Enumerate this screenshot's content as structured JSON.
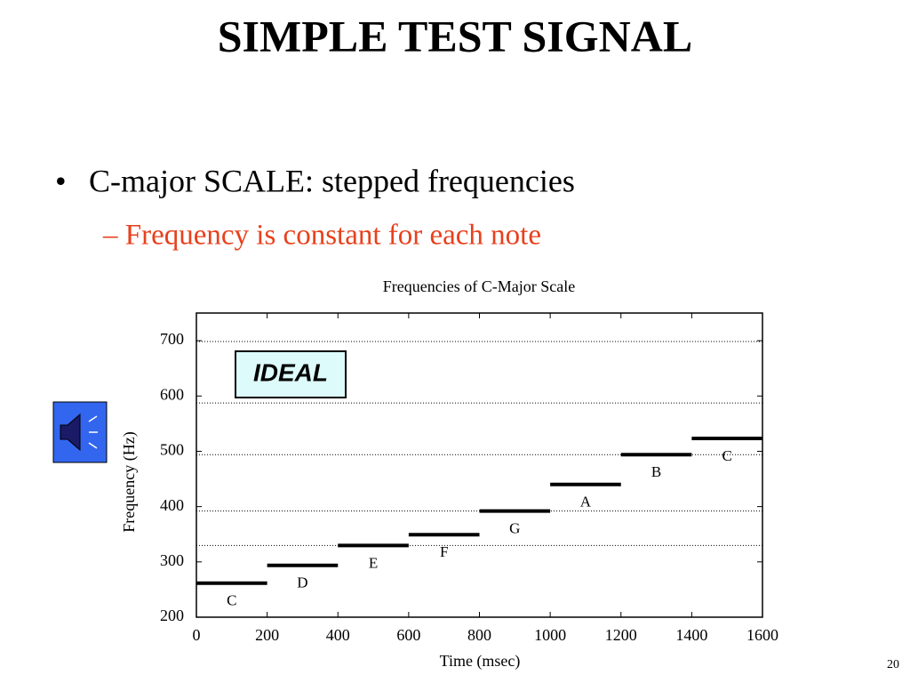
{
  "slide": {
    "title": "SIMPLE TEST SIGNAL",
    "bullet": "C-major SCALE: stepped frequencies",
    "sub_bullet": "– Frequency is constant for each note",
    "badge": "IDEAL",
    "page_number": "20"
  },
  "chart_data": {
    "type": "step",
    "title": "Frequencies of C-Major Scale",
    "x_label": "Time (msec)",
    "y_label": "Frequency (Hz)",
    "labels": [
      "C",
      "D",
      "E",
      "F",
      "G",
      "A",
      "B",
      "C"
    ],
    "values": [
      261.6,
      293.7,
      329.6,
      349.2,
      392,
      440,
      493.9,
      523.3
    ],
    "x_start": [
      0,
      200,
      400,
      600,
      800,
      1000,
      1200,
      1400
    ],
    "x_end": [
      200,
      400,
      600,
      800,
      1000,
      1200,
      1400,
      1600
    ],
    "reference_lines": [
      329.6,
      392,
      493.9,
      587.3,
      698.5
    ],
    "color": "#000000",
    "xlim": [
      0,
      1600
    ],
    "xticks": [
      0,
      200,
      400,
      600,
      800,
      1000,
      1200,
      1400,
      1600
    ],
    "ylim": [
      200,
      750
    ],
    "yticks": [
      200,
      300,
      400,
      500,
      600,
      700
    ]
  }
}
